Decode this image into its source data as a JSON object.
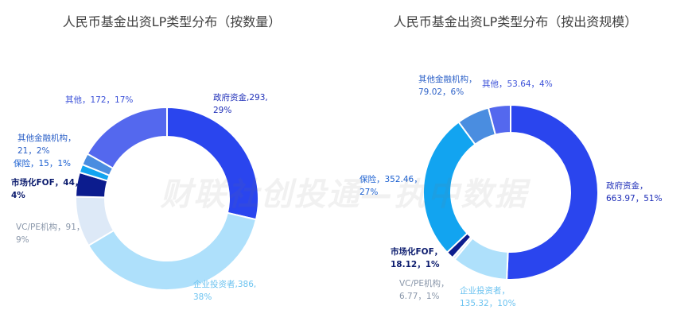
{
  "watermark": "财联社创投通—执中数据",
  "chart_data": [
    {
      "type": "pie",
      "title": "人民币基金出资LP类型分布（按数量）",
      "donut": true,
      "start": "12 o'clock, clockwise",
      "slices": [
        {
          "name": "政府资金",
          "value": 293,
          "percent": "29%",
          "color": "#2a45ee",
          "label_line1": "政府资金,293,",
          "label_line2": "29%",
          "label_color": "#1f2fb8",
          "bold": false
        },
        {
          "name": "企业投资者",
          "value": 386,
          "percent": "38%",
          "color": "#aee0fb",
          "label_line1": "企业投资者,386,",
          "label_line2": "38%",
          "label_color": "#6cc3f0",
          "bold": false
        },
        {
          "name": "VC/PE机构",
          "value": 91,
          "percent": "9%",
          "color": "#dde9f7",
          "label_line1": "VC/PE机构，91，",
          "label_line2": "9%",
          "label_color": "#8a97aa",
          "bold": false
        },
        {
          "name": "市场化FOF",
          "value": 44,
          "percent": "4%",
          "color": "#0c1c8e",
          "label_line1": "市场化FOF，44，",
          "label_line2": "4%",
          "label_color": "#0c1c6e",
          "bold": true
        },
        {
          "name": "保险",
          "value": 15,
          "percent": "1%",
          "color": "#12a4f0",
          "label_line1": "保险，15，1%",
          "label_line2": "",
          "label_color": "#1a5fd0",
          "bold": false
        },
        {
          "name": "其他金融机构",
          "value": 21,
          "percent": "2%",
          "color": "#4a8de0",
          "label_line1": "其他金融机构，",
          "label_line2": "21，2%",
          "label_color": "#2e62c8",
          "bold": false
        },
        {
          "name": "其他",
          "value": 172,
          "percent": "17%",
          "color": "#5468ee",
          "label_line1": "其他，172，17%",
          "label_line2": "",
          "label_color": "#3a50d8",
          "bold": false
        }
      ]
    },
    {
      "type": "pie",
      "title": "人民币基金出资LP类型分布（按出资规模）",
      "donut": true,
      "start": "12 o'clock, clockwise",
      "slices": [
        {
          "name": "政府资金",
          "value": 663.97,
          "percent": "51%",
          "color": "#2a45ee",
          "label_line1": "政府资金，",
          "label_line2": "663.97，51%",
          "label_color": "#1f2fb8",
          "bold": false
        },
        {
          "name": "企业投资者",
          "value": 135.32,
          "percent": "10%",
          "color": "#aee0fb",
          "label_line1": "企业投资者，",
          "label_line2": "135.32，10%",
          "label_color": "#6cc3f0",
          "bold": false
        },
        {
          "name": "VC/PE机构",
          "value": 6.77,
          "percent": "1%",
          "color": "#dde9f7",
          "label_line1": "VC/PE机构，",
          "label_line2": "6.77，1%",
          "label_color": "#8a97aa",
          "bold": false
        },
        {
          "name": "市场化FOF",
          "value": 18.12,
          "percent": "1%",
          "color": "#0c1c8e",
          "label_line1": "市场化FOF，",
          "label_line2": "18.12，1%",
          "label_color": "#0c1c6e",
          "bold": true
        },
        {
          "name": "保险",
          "value": 352.46,
          "percent": "27%",
          "color": "#12a4f0",
          "label_line1": "保险，352.46，",
          "label_line2": "27%",
          "label_color": "#1a5fd0",
          "bold": false
        },
        {
          "name": "其他金融机构",
          "value": 79.02,
          "percent": "6%",
          "color": "#4a8de0",
          "label_line1": "其他金融机构，",
          "label_line2": "79.02，6%",
          "label_color": "#2e62c8",
          "bold": false
        },
        {
          "name": "其他",
          "value": 53.64,
          "percent": "4%",
          "color": "#5468ee",
          "label_line1": "其他，53.64，4%",
          "label_line2": "",
          "label_color": "#3a50d8",
          "bold": false
        }
      ]
    }
  ]
}
